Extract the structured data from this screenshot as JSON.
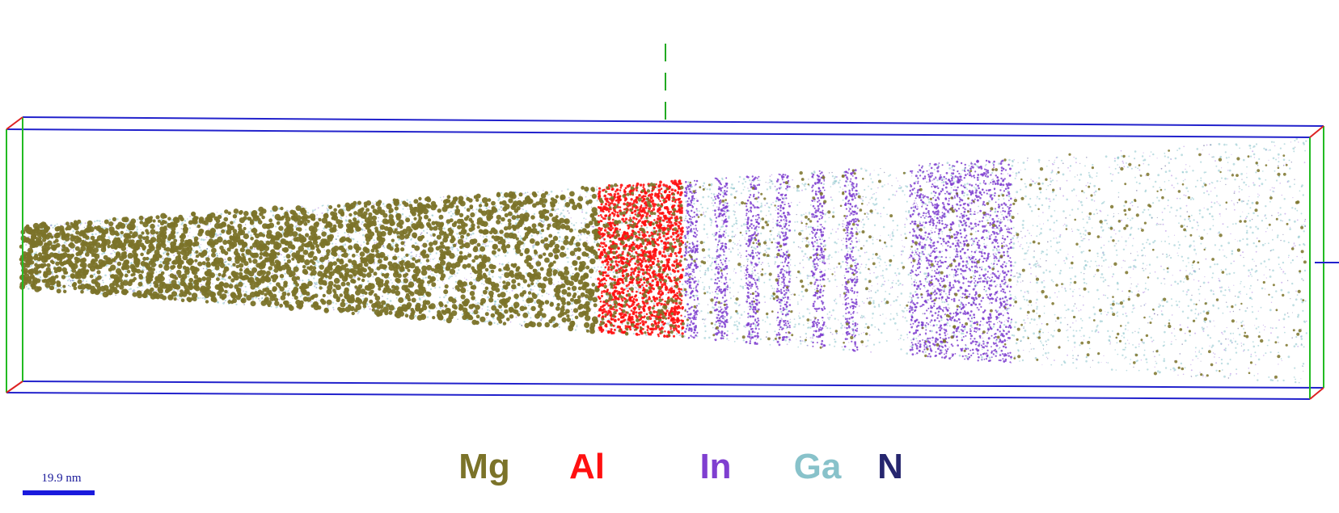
{
  "legend": {
    "items": [
      {
        "label": "Mg",
        "color": "#7b7329"
      },
      {
        "label": "Al",
        "color": "#ff1010"
      },
      {
        "label": "In",
        "color": "#7f3fd0"
      },
      {
        "label": "Ga",
        "color": "#88c2ca"
      },
      {
        "label": "N",
        "color": "#26266e"
      }
    ]
  },
  "scale_bar": {
    "label": "19.9 nm"
  }
}
